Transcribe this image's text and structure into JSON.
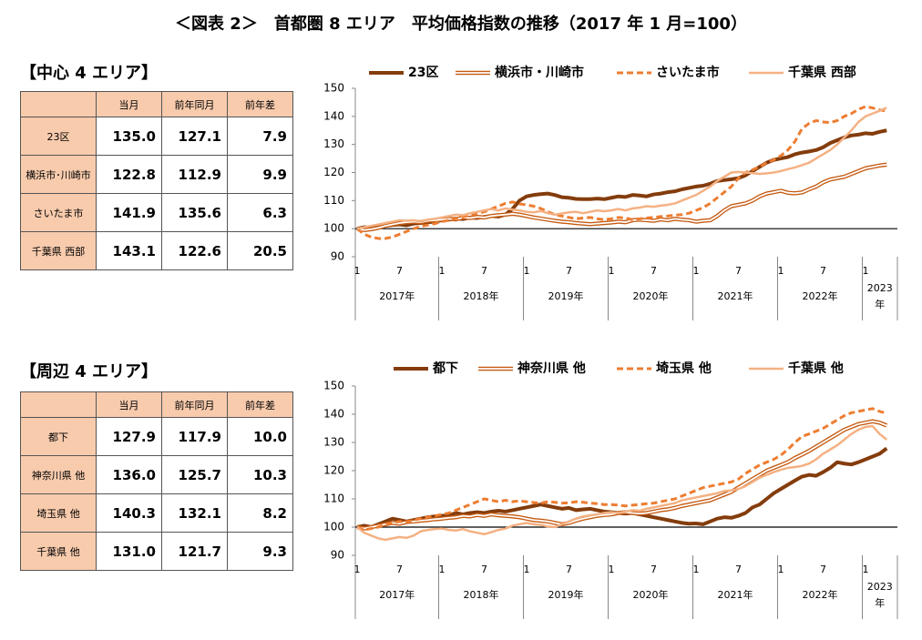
{
  "title": "＜図表 2＞　首都圏 8 エリア　平均価格指数の推移（2017 年 1 月=100）",
  "sections": [
    {
      "heading": "【中心 4 エリア】",
      "table": {
        "header": [
          "当月",
          "前年同月",
          "前年差"
        ],
        "rows": [
          [
            "23区",
            "135.0",
            "127.1",
            "7.9"
          ],
          [
            "横浜市･川崎市",
            "122.8",
            "112.9",
            "9.9"
          ],
          [
            "さいたま市",
            "141.9",
            "135.6",
            "6.3"
          ],
          [
            "千葉県 西部",
            "143.1",
            "122.6",
            "20.5"
          ]
        ]
      }
    },
    {
      "heading": "【周辺 4 エリア】",
      "table": {
        "header": [
          "当月",
          "前年同月",
          "前年差"
        ],
        "rows": [
          [
            "都下",
            "127.9",
            "117.9",
            "10.0"
          ],
          [
            "神奈川県 他",
            "136.0",
            "125.7",
            "10.3"
          ],
          [
            "埼玉県 他",
            "140.3",
            "132.1",
            "8.2"
          ],
          [
            "千葉県 他",
            "131.0",
            "121.7",
            "9.3"
          ]
        ]
      }
    }
  ],
  "chart_data": [
    {
      "type": "line",
      "categories": [
        "1",
        null,
        null,
        null,
        null,
        null,
        "7",
        null,
        null,
        null,
        null,
        null,
        "1",
        null,
        null,
        null,
        null,
        null,
        "7",
        null,
        null,
        null,
        null,
        null,
        "1",
        null,
        null,
        null,
        null,
        null,
        "7",
        null,
        null,
        null,
        null,
        null,
        "1",
        null,
        null,
        null,
        null,
        null,
        "7",
        null,
        null,
        null,
        null,
        null,
        "1",
        null,
        null,
        null,
        null,
        null,
        "7",
        null,
        null,
        null,
        null,
        null,
        "1",
        null,
        null,
        null,
        null,
        null,
        "7",
        null,
        null,
        null,
        null,
        null,
        "1",
        null,
        null,
        null
      ],
      "years": [
        "2017年",
        "2018年",
        "2019年",
        "2020年",
        "2021年",
        "2022年",
        "2023年"
      ],
      "ylim": [
        90,
        150
      ],
      "yticks": [
        90,
        100,
        110,
        120,
        130,
        140,
        150
      ],
      "baseline": 100,
      "series": [
        {
          "name": "23区",
          "color": "#843c0c",
          "style": "solid",
          "values": [
            100,
            100.5,
            100.3,
            100.8,
            101,
            101.3,
            101.5,
            101.2,
            101.8,
            102,
            102.3,
            102.5,
            103,
            103.2,
            103.6,
            103.4,
            104,
            103.8,
            104.2,
            104.5,
            104.3,
            105,
            107,
            110,
            111.5,
            112,
            112.3,
            112.5,
            112,
            111.2,
            111,
            110.6,
            110.5,
            110.5,
            110.7,
            110.5,
            111,
            111.5,
            111.3,
            112,
            111.8,
            111.5,
            112.2,
            112.5,
            113,
            113.3,
            114,
            114.5,
            115,
            115.3,
            116,
            117,
            117.3,
            117.6,
            118,
            119,
            120.5,
            122,
            123.5,
            124.5,
            125,
            125.5,
            126.5,
            127.1,
            127.5,
            128,
            129,
            130.5,
            131.5,
            132.5,
            133.2,
            133.5,
            134,
            133.8,
            134.5,
            135.0
          ]
        },
        {
          "name": "横浜市・川崎市",
          "color": "#c55a11",
          "style": "double",
          "values": [
            100,
            99.5,
            99.8,
            100.3,
            101,
            101.5,
            102,
            102.3,
            102.5,
            102.3,
            102.8,
            103,
            103.2,
            103.5,
            103.3,
            104,
            103.8,
            104.2,
            104,
            104.5,
            104.8,
            105,
            105.3,
            105,
            104.5,
            104,
            103.6,
            103.2,
            102.8,
            102.5,
            102.3,
            102,
            101.8,
            101.6,
            101.8,
            102,
            102.2,
            102.5,
            102.3,
            103,
            103.2,
            103,
            102.8,
            103.3,
            103,
            103.5,
            103.2,
            103,
            102.5,
            102.8,
            103,
            104.5,
            106.5,
            108,
            108.5,
            109,
            110,
            111.5,
            112.5,
            113,
            113.5,
            112.8,
            112.6,
            112.9,
            114,
            115,
            116.5,
            117.5,
            118,
            118.5,
            119.5,
            120.5,
            121.5,
            122,
            122.5,
            122.8
          ]
        },
        {
          "name": "さいたま市",
          "color": "#ed7d31",
          "style": "dashed",
          "values": [
            100,
            98,
            97,
            96.5,
            96.5,
            97,
            98,
            99,
            100,
            100.8,
            101.3,
            101.8,
            102.5,
            103,
            103.6,
            104.2,
            104.8,
            105.5,
            106,
            107,
            108,
            109,
            109.5,
            108.8,
            108.5,
            108,
            107.2,
            106,
            105,
            104.5,
            104,
            103.5,
            103.8,
            104,
            103.5,
            103.2,
            103.5,
            104,
            103.8,
            103.2,
            103.5,
            103.8,
            104,
            104.3,
            104.5,
            104.8,
            105,
            105.5,
            106.5,
            107.5,
            109,
            111,
            113,
            115,
            118,
            120,
            121,
            122,
            123.5,
            124.5,
            126,
            128,
            131,
            135.6,
            137.5,
            138.5,
            138,
            137.8,
            138.5,
            140,
            141,
            142.5,
            143.5,
            143,
            142.3,
            141.9
          ]
        },
        {
          "name": "千葉県 西部",
          "color": "#f4b183",
          "style": "solid",
          "values": [
            100,
            100.5,
            101,
            101.5,
            102,
            102.5,
            103,
            102.8,
            103,
            102.5,
            103.2,
            103.5,
            104,
            104.5,
            105,
            104.8,
            105.5,
            106,
            106.5,
            107,
            106.5,
            107.2,
            106.8,
            106.5,
            106,
            105.8,
            106.3,
            105.5,
            105,
            105.4,
            105.8,
            106,
            105.5,
            106,
            106.5,
            106.2,
            106.5,
            107,
            106.5,
            107.2,
            107.5,
            108,
            107.8,
            108.2,
            108.5,
            109,
            110,
            111,
            112,
            113.5,
            115,
            117,
            118.5,
            120,
            120.2,
            120,
            119.8,
            119.5,
            119.7,
            120,
            120.5,
            121.2,
            121.8,
            122.6,
            123.5,
            125,
            126.5,
            128,
            130,
            132.5,
            135,
            138,
            140,
            141,
            142,
            143.1
          ]
        }
      ]
    },
    {
      "type": "line",
      "categories": [
        "1",
        null,
        null,
        null,
        null,
        null,
        "7",
        null,
        null,
        null,
        null,
        null,
        "1",
        null,
        null,
        null,
        null,
        null,
        "7",
        null,
        null,
        null,
        null,
        null,
        "1",
        null,
        null,
        null,
        null,
        null,
        "7",
        null,
        null,
        null,
        null,
        null,
        "1",
        null,
        null,
        null,
        null,
        null,
        "7",
        null,
        null,
        null,
        null,
        null,
        "1",
        null,
        null,
        null,
        null,
        null,
        "7",
        null,
        null,
        null,
        null,
        null,
        "1",
        null,
        null,
        null,
        null,
        null,
        "7",
        null,
        null,
        null,
        null,
        null,
        "1",
        null,
        null,
        null
      ],
      "years": [
        "2017年",
        "2018年",
        "2019年",
        "2020年",
        "2021年",
        "2022年",
        "2023年"
      ],
      "ylim": [
        90,
        150
      ],
      "yticks": [
        90,
        100,
        110,
        120,
        130,
        140,
        150
      ],
      "baseline": 100,
      "series": [
        {
          "name": "都下",
          "color": "#843c0c",
          "style": "solid",
          "values": [
            100,
            100.5,
            100,
            101,
            102,
            103,
            102.5,
            102,
            102.5,
            103,
            103.5,
            103.8,
            104,
            104.2,
            105,
            104.5,
            105,
            105.3,
            105,
            105.5,
            105.8,
            105.5,
            106,
            106.5,
            107,
            107.5,
            108,
            107.5,
            107,
            106.5,
            106.8,
            106,
            106.3,
            106.5,
            106,
            105.5,
            105.3,
            105,
            104.8,
            105,
            104.5,
            104,
            103.5,
            103,
            102.5,
            102,
            101.5,
            101.2,
            101.3,
            101,
            102,
            103,
            103.5,
            103.3,
            104,
            105,
            107,
            108,
            110,
            112,
            113.5,
            115,
            116.5,
            117.9,
            118.5,
            118.2,
            119.5,
            121,
            123,
            122.5,
            122.2,
            123,
            124,
            125,
            126,
            127.9
          ]
        },
        {
          "name": "神奈川県 他",
          "color": "#c55a11",
          "style": "double",
          "values": [
            100,
            99.5,
            100,
            100.5,
            101,
            101.5,
            101.2,
            101.8,
            102,
            102.3,
            102.5,
            102.8,
            103,
            103.3,
            103.5,
            104,
            103.8,
            104.3,
            104,
            104.5,
            104.2,
            104,
            103.8,
            103.5,
            103,
            102.5,
            102.3,
            102,
            101.5,
            101,
            101.5,
            102.3,
            103,
            103.5,
            104,
            104.3,
            104.5,
            105,
            105.3,
            105,
            104.8,
            105,
            105.5,
            106,
            106.3,
            106.8,
            107.5,
            108,
            108.5,
            109,
            109.5,
            110.5,
            111.5,
            112.5,
            114,
            115.5,
            117,
            118.5,
            120,
            121,
            122,
            123,
            124.5,
            125.7,
            127,
            128.5,
            130,
            131.5,
            133,
            134.5,
            135.5,
            136.5,
            137,
            137.5,
            137,
            136.0
          ]
        },
        {
          "name": "埼玉県 他",
          "color": "#ed7d31",
          "style": "dashed",
          "values": [
            100,
            99,
            99.5,
            100,
            101,
            101.5,
            102,
            101.8,
            102.5,
            103,
            103.5,
            104,
            104.5,
            105,
            106,
            107,
            108,
            109,
            110,
            109.5,
            109,
            109.5,
            109,
            109.3,
            109,
            108.7,
            108.5,
            109,
            108.8,
            108.5,
            108.6,
            109,
            108.8,
            108.5,
            108.3,
            108,
            108,
            107.8,
            107.5,
            107.8,
            108,
            108.3,
            108.5,
            109,
            109.5,
            110,
            111,
            112,
            113,
            114,
            114.5,
            115,
            115.5,
            116,
            117,
            119,
            120.5,
            122,
            123,
            124,
            125.5,
            127.5,
            130,
            132.1,
            133,
            134,
            135,
            136.5,
            138,
            139.5,
            140.5,
            141,
            141.5,
            142,
            141,
            140.3
          ]
        },
        {
          "name": "千葉県 他",
          "color": "#f4b183",
          "style": "solid",
          "values": [
            100,
            98,
            97,
            96,
            95.5,
            96,
            96.5,
            96.2,
            97,
            98.5,
            99,
            99.3,
            99.5,
            99,
            98.8,
            99.3,
            98.5,
            98,
            97.5,
            98.2,
            99,
            99.5,
            100.5,
            101,
            101.5,
            101,
            100.8,
            100.2,
            100,
            101,
            102,
            103,
            103.8,
            104.2,
            104.5,
            105,
            105.3,
            105,
            105.5,
            106,
            105.8,
            106.5,
            107,
            107.5,
            108,
            108.5,
            109.5,
            110,
            110.5,
            111,
            111.5,
            112,
            112.8,
            113,
            113.5,
            114.5,
            116,
            117.5,
            118.5,
            119.5,
            120.3,
            121,
            121.3,
            121.7,
            122.5,
            124,
            126,
            127.5,
            129,
            131,
            133,
            134.5,
            135.5,
            135.8,
            133,
            131.0
          ]
        }
      ]
    }
  ]
}
